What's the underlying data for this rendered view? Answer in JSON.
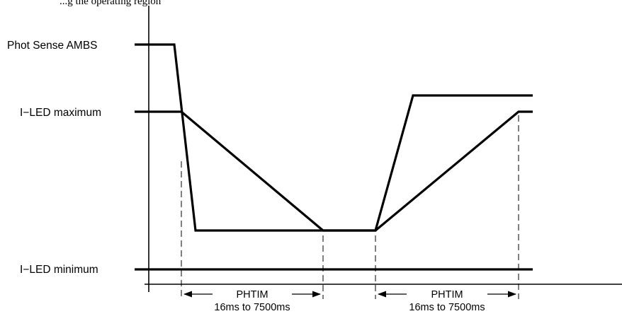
{
  "header_partial": "...g the operating region",
  "levels": {
    "phot_sense": "Phot Sense AMBS",
    "led_max": "I−LED maximum",
    "led_min": "I−LED minimum"
  },
  "intervals": [
    {
      "name": "PHTIM",
      "range": "16ms to 7500ms"
    },
    {
      "name": "PHTIM",
      "range": "16ms to 7500ms"
    }
  ]
}
